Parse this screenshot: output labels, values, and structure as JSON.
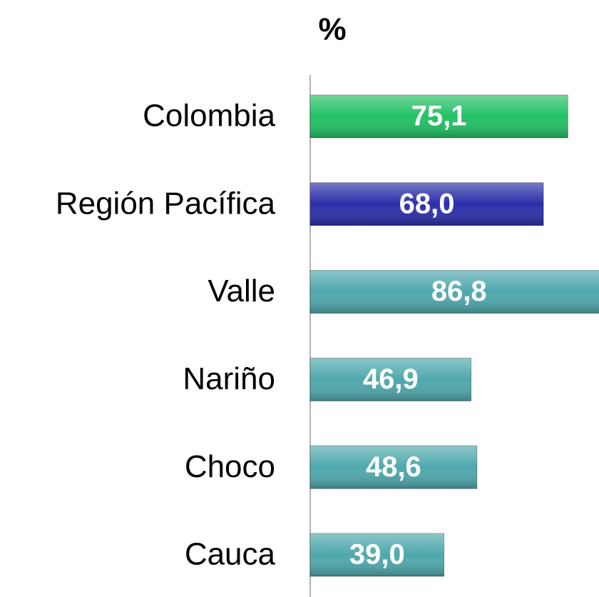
{
  "chart_data": {
    "type": "bar",
    "orientation": "horizontal",
    "title": "%",
    "categories": [
      "Colombia",
      "Región Pacífica",
      "Valle",
      "Nariño",
      "Choco",
      "Cauca"
    ],
    "values": [
      75.1,
      68.0,
      86.8,
      46.9,
      48.6,
      39.0
    ],
    "value_labels": [
      "75,1",
      "68,0",
      "86,8",
      "46,9",
      "48,6",
      "39,0"
    ],
    "colors": [
      "#22c064",
      "#2b2fa8",
      "#4fa8ad",
      "#4fa8ad",
      "#4fa8ad",
      "#4fa8ad"
    ]
  }
}
